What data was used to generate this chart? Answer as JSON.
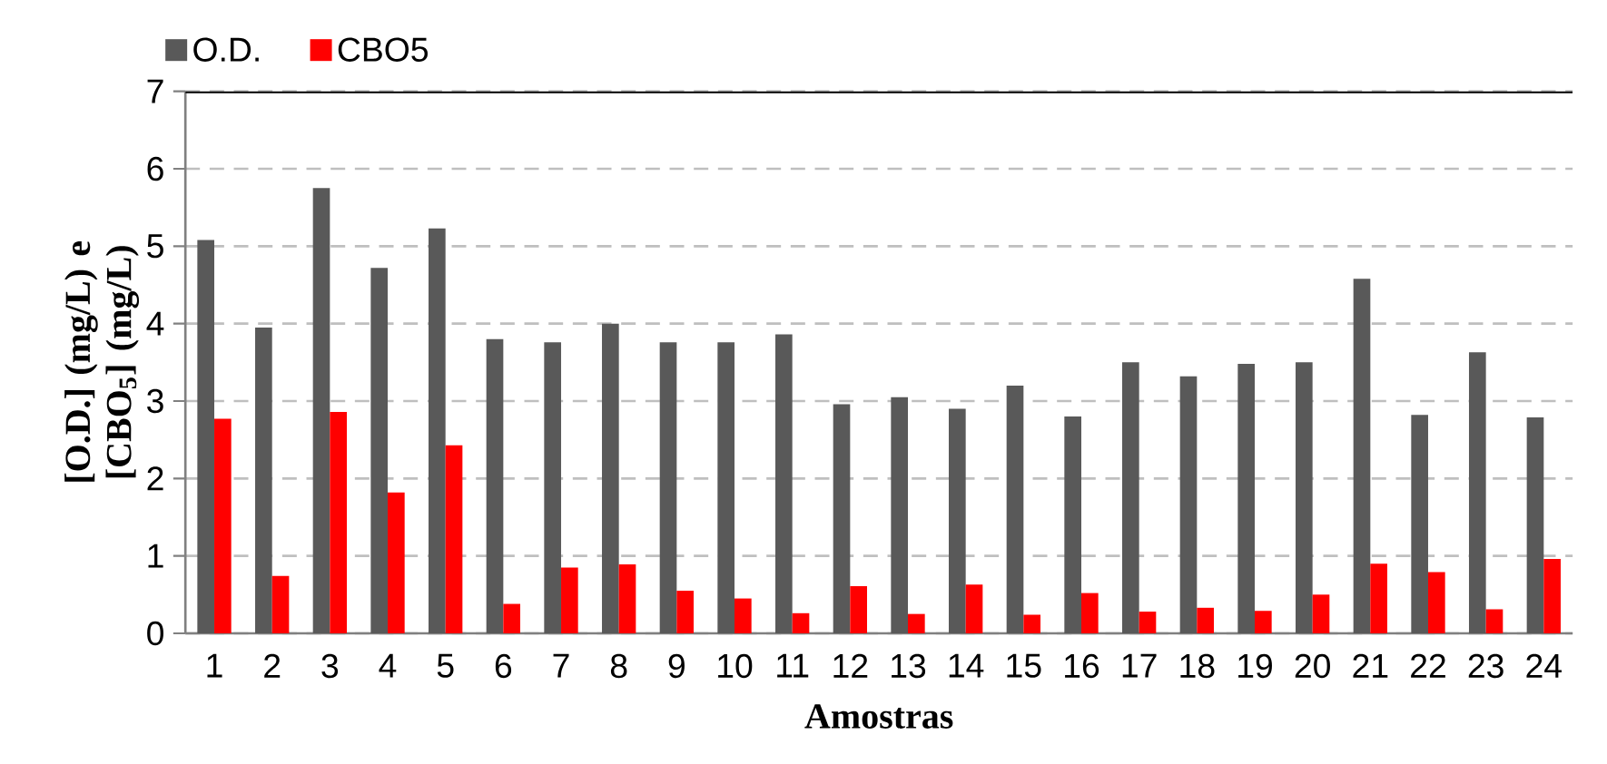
{
  "chart_data": {
    "type": "bar",
    "xlabel": "Amostras",
    "ylabel": "[O.D.] (mg/L) e [CBO$_{5}$] (mg/L)",
    "categories": [
      "1",
      "2",
      "3",
      "4",
      "5",
      "6",
      "7",
      "8",
      "9",
      "10",
      "11",
      "12",
      "13",
      "14",
      "15",
      "16",
      "17",
      "18",
      "19",
      "20",
      "21",
      "22",
      "23",
      "24"
    ],
    "series": [
      {
        "name": "O.D.",
        "color": "#595959",
        "values": [
          5.08,
          3.95,
          5.75,
          4.72,
          5.23,
          3.8,
          3.76,
          4.0,
          3.76,
          3.76,
          3.86,
          2.96,
          3.05,
          2.9,
          3.2,
          2.8,
          3.5,
          3.32,
          3.48,
          3.5,
          4.58,
          2.82,
          3.63,
          2.79
        ]
      },
      {
        "name": "CBO5",
        "color": "#ff0000",
        "values": [
          2.77,
          0.74,
          2.86,
          1.82,
          2.43,
          0.38,
          0.85,
          0.89,
          0.55,
          0.45,
          0.26,
          0.61,
          0.25,
          0.63,
          0.24,
          0.52,
          0.28,
          0.33,
          0.29,
          0.5,
          0.9,
          0.79,
          0.31,
          0.96
        ]
      }
    ],
    "ylim": [
      0,
      7
    ],
    "yticks": [
      0,
      1,
      2,
      3,
      4,
      5,
      6,
      7
    ],
    "grid": "y",
    "legend": "top left"
  }
}
